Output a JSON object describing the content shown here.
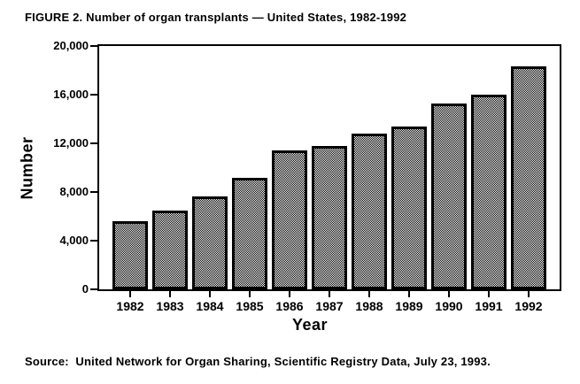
{
  "figure": {
    "title": "FIGURE 2. Number of organ transplants — United States, 1982-1992",
    "source": "Source:  United Network for Organ Sharing, Scientific Registry Data, July 23, 1993."
  },
  "chart_data": {
    "type": "bar",
    "title": "FIGURE 2. Number of organ transplants — United States, 1982-1992",
    "xlabel": "Year",
    "ylabel": "Number",
    "categories": [
      "1982",
      "1983",
      "1984",
      "1985",
      "1986",
      "1987",
      "1988",
      "1989",
      "1990",
      "1991",
      "1992"
    ],
    "values": [
      5600,
      6500,
      7600,
      9150,
      11400,
      11800,
      12800,
      13400,
      15300,
      16000,
      18300
    ],
    "ylim": [
      0,
      20000
    ],
    "yticks": [
      0,
      4000,
      8000,
      12000,
      16000,
      20000
    ],
    "ytick_labels": [
      "0",
      "4,000",
      "8,000",
      "12,000",
      "16,000",
      "20,000"
    ],
    "grid": "off",
    "legend": "none",
    "frame": true,
    "bar_style": {
      "fill": "checkerboard-dither",
      "fill_colors": [
        "#000000",
        "#ffffff"
      ],
      "border_color": "#000000"
    },
    "source_note": "Source:  United Network for Organ Sharing, Scientific Registry Data, July 23, 1993."
  }
}
